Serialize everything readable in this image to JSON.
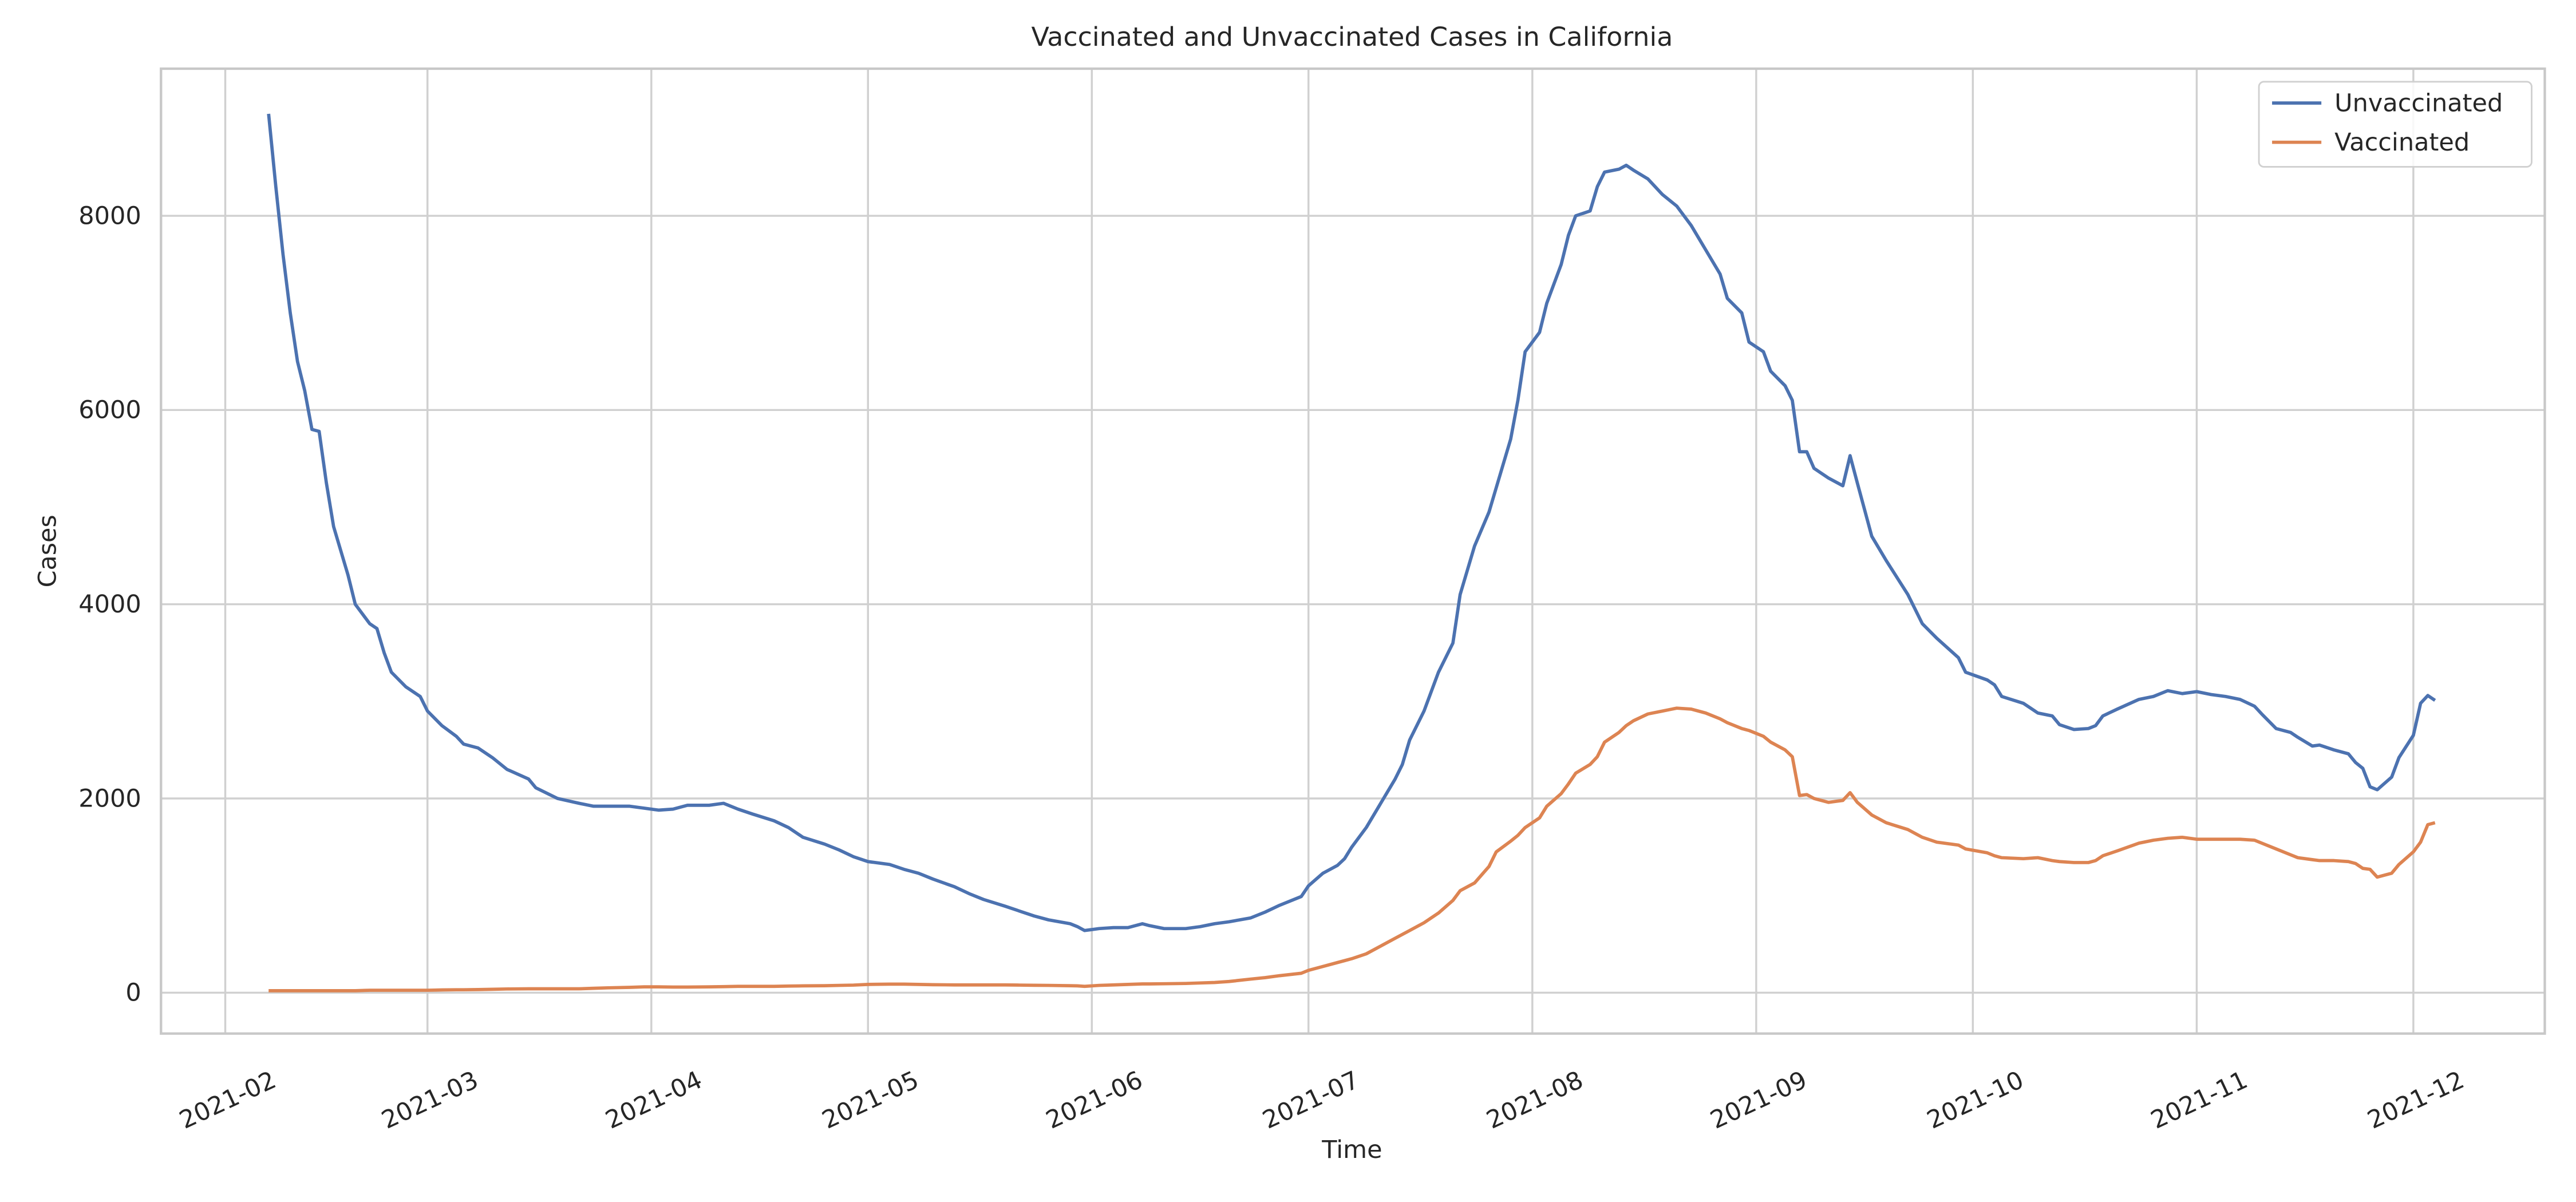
{
  "chart_data": {
    "type": "line",
    "title": "Vaccinated and Unvaccinated Cases in California",
    "xlabel": "Time",
    "ylabel": "Cases",
    "grid": true,
    "legend": "upper right",
    "xlim": [
      23.1,
      353.2
    ],
    "xticks": [
      {
        "value": 32,
        "label": "2021-02"
      },
      {
        "value": 60,
        "label": "2021-03"
      },
      {
        "value": 91,
        "label": "2021-04"
      },
      {
        "value": 121,
        "label": "2021-05"
      },
      {
        "value": 152,
        "label": "2021-06"
      },
      {
        "value": 182,
        "label": "2021-07"
      },
      {
        "value": 213,
        "label": "2021-08"
      },
      {
        "value": 244,
        "label": "2021-09"
      },
      {
        "value": 274,
        "label": "2021-10"
      },
      {
        "value": 305,
        "label": "2021-11"
      },
      {
        "value": 335,
        "label": "2021-12"
      }
    ],
    "ylim": [
      -421,
      9515
    ],
    "yticks": [
      0,
      2000,
      4000,
      6000,
      8000
    ],
    "x": [
      38,
      39,
      40,
      41,
      42,
      43,
      44,
      45,
      46,
      47,
      49,
      50,
      52,
      53,
      54,
      55,
      57,
      59,
      60,
      62,
      64,
      65,
      67,
      69,
      71,
      74,
      75,
      78,
      81,
      83,
      85,
      88,
      90,
      92,
      94,
      96,
      99,
      101,
      103,
      105,
      108,
      110,
      112,
      115,
      117,
      119,
      121,
      124,
      126,
      128,
      130,
      133,
      135,
      137,
      140,
      142,
      144,
      146,
      149,
      150,
      151,
      153,
      155,
      157,
      159,
      160,
      162,
      165,
      167,
      169,
      171,
      174,
      176,
      178,
      181,
      182,
      184,
      186,
      187,
      188,
      190,
      192,
      194,
      195,
      196,
      198,
      200,
      202,
      203,
      205,
      207,
      208,
      210,
      211,
      212,
      214,
      215,
      217,
      218,
      219,
      221,
      222,
      223,
      225,
      226,
      227,
      229,
      231,
      233,
      235,
      237,
      239,
      240,
      242,
      243,
      245,
      246,
      248,
      249,
      250,
      251,
      252,
      254,
      256,
      257,
      258,
      260,
      262,
      265,
      267,
      269,
      272,
      273,
      276,
      277,
      278,
      281,
      283,
      285,
      286,
      288,
      290,
      291,
      292,
      294,
      297,
      299,
      301,
      303,
      305,
      307,
      309,
      311,
      313,
      314,
      316,
      318,
      319,
      321,
      322,
      324,
      326,
      327,
      328,
      329,
      330,
      332,
      333,
      335,
      336,
      337,
      338
    ],
    "series": [
      {
        "name": "Unvaccinated",
        "color": "#4c72b0",
        "values": [
          9050,
          8300,
          7600,
          7000,
          6500,
          6200,
          5800,
          5780,
          5250,
          4800,
          4300,
          4000,
          3800,
          3750,
          3500,
          3300,
          3150,
          3050,
          2900,
          2750,
          2640,
          2560,
          2520,
          2420,
          2300,
          2200,
          2110,
          2000,
          1950,
          1920,
          1920,
          1920,
          1900,
          1880,
          1890,
          1930,
          1930,
          1950,
          1890,
          1840,
          1770,
          1700,
          1600,
          1530,
          1470,
          1400,
          1350,
          1320,
          1270,
          1230,
          1170,
          1090,
          1020,
          960,
          890,
          840,
          790,
          750,
          710,
          680,
          640,
          660,
          670,
          670,
          710,
          690,
          660,
          660,
          680,
          710,
          730,
          770,
          830,
          900,
          990,
          1100,
          1230,
          1310,
          1380,
          1500,
          1700,
          1950,
          2200,
          2350,
          2600,
          2900,
          3300,
          3600,
          4100,
          4600,
          4950,
          5200,
          5700,
          6100,
          6600,
          6800,
          7100,
          7500,
          7800,
          8000,
          8050,
          8300,
          8450,
          8480,
          8520,
          8470,
          8380,
          8220,
          8100,
          7900,
          7650,
          7400,
          7150,
          7000,
          6700,
          6600,
          6400,
          6250,
          6100,
          5570,
          5570,
          5400,
          5300,
          5220,
          5530,
          5250,
          4700,
          4450,
          4100,
          3800,
          3650,
          3450,
          3300,
          3220,
          3170,
          3050,
          2980,
          2880,
          2850,
          2760,
          2710,
          2720,
          2750,
          2850,
          2920,
          3020,
          3050,
          3110,
          3080,
          3100,
          3070,
          3050,
          3020,
          2950,
          2870,
          2720,
          2680,
          2630,
          2540,
          2550,
          2500,
          2460,
          2370,
          2310,
          2120,
          2090,
          2220,
          2420,
          2650,
          2980,
          3060,
          3010
        ]
      },
      {
        "name": "Vaccinated",
        "color": "#dd8452",
        "values": [
          20,
          20,
          20,
          20,
          20,
          20,
          20,
          20,
          20,
          20,
          20,
          20,
          25,
          25,
          25,
          25,
          25,
          25,
          25,
          28,
          30,
          30,
          32,
          35,
          38,
          40,
          40,
          40,
          40,
          45,
          50,
          55,
          60,
          60,
          58,
          58,
          60,
          62,
          65,
          65,
          65,
          68,
          70,
          72,
          75,
          78,
          85,
          88,
          88,
          85,
          82,
          80,
          80,
          80,
          80,
          78,
          76,
          75,
          72,
          70,
          65,
          75,
          80,
          85,
          90,
          90,
          92,
          95,
          100,
          105,
          115,
          140,
          155,
          175,
          200,
          230,
          270,
          310,
          330,
          350,
          400,
          480,
          560,
          600,
          640,
          720,
          820,
          950,
          1050,
          1130,
          1300,
          1450,
          1560,
          1620,
          1700,
          1800,
          1920,
          2050,
          2150,
          2260,
          2350,
          2430,
          2580,
          2680,
          2750,
          2800,
          2870,
          2900,
          2930,
          2920,
          2880,
          2820,
          2780,
          2720,
          2700,
          2640,
          2580,
          2500,
          2430,
          2030,
          2040,
          2000,
          1960,
          1980,
          2060,
          1960,
          1830,
          1750,
          1680,
          1600,
          1550,
          1520,
          1480,
          1440,
          1410,
          1390,
          1380,
          1390,
          1360,
          1350,
          1340,
          1340,
          1360,
          1410,
          1460,
          1540,
          1570,
          1590,
          1600,
          1580,
          1580,
          1580,
          1580,
          1570,
          1540,
          1480,
          1420,
          1390,
          1370,
          1360,
          1360,
          1350,
          1330,
          1280,
          1270,
          1190,
          1230,
          1320,
          1450,
          1550,
          1730,
          1750
        ]
      }
    ]
  }
}
